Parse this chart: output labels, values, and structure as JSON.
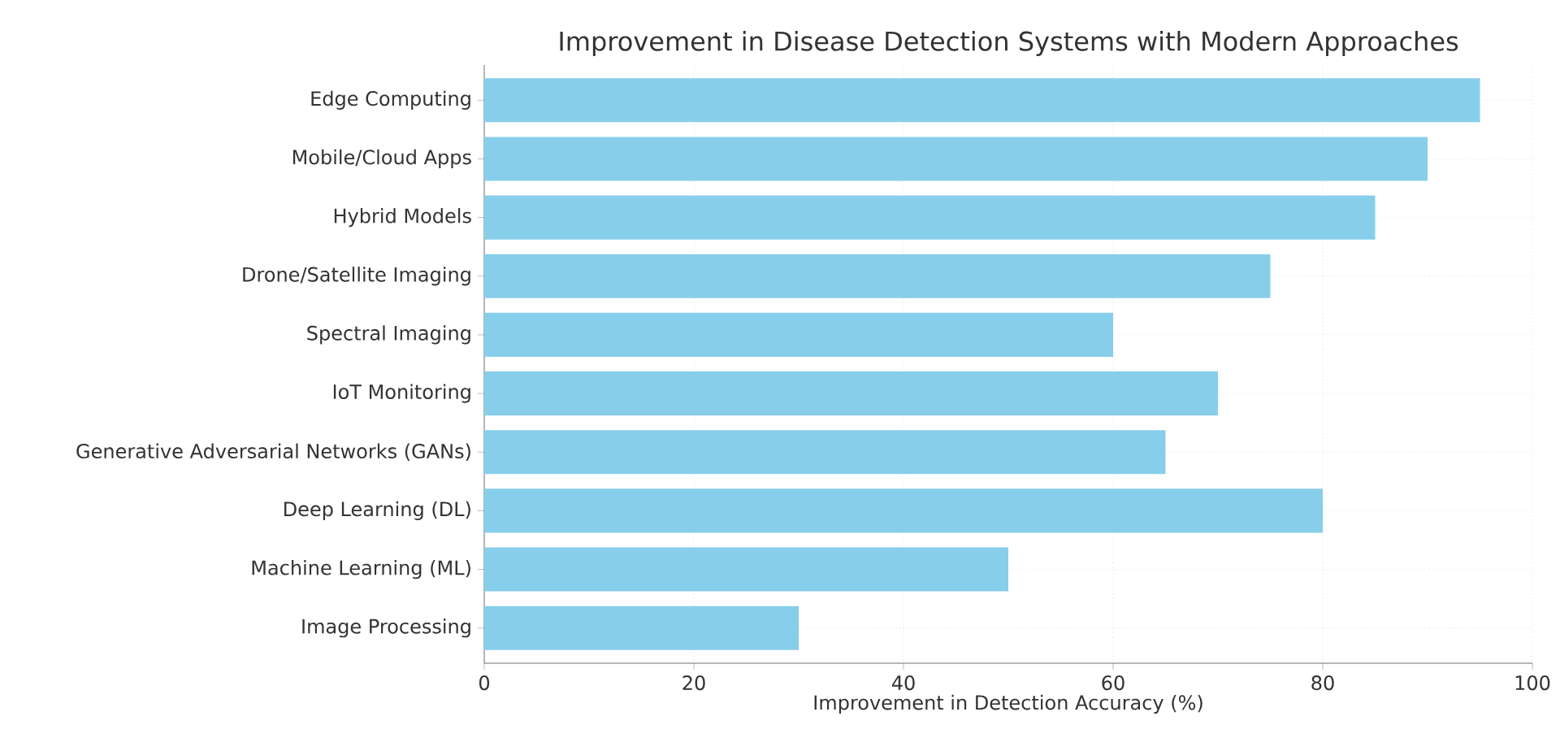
{
  "chart_data": {
    "type": "bar",
    "orientation": "horizontal",
    "title": "Improvement in Disease Detection Systems with Modern Approaches",
    "xlabel": "Improvement in Detection Accuracy (%)",
    "categories": [
      "Edge Computing",
      "Mobile/Cloud Apps",
      "Hybrid Models",
      "Drone/Satellite Imaging",
      "Spectral Imaging",
      "IoT Monitoring",
      "Generative Adversarial Networks (GANs)",
      "Deep Learning (DL)",
      "Machine Learning (ML)",
      "Image Processing"
    ],
    "values": [
      95,
      90,
      85,
      75,
      60,
      70,
      65,
      80,
      50,
      30
    ],
    "color": "#87ceeb",
    "xlim": [
      0,
      100
    ],
    "xticks": [
      0,
      20,
      40,
      60,
      80,
      100
    ],
    "grid": true
  }
}
